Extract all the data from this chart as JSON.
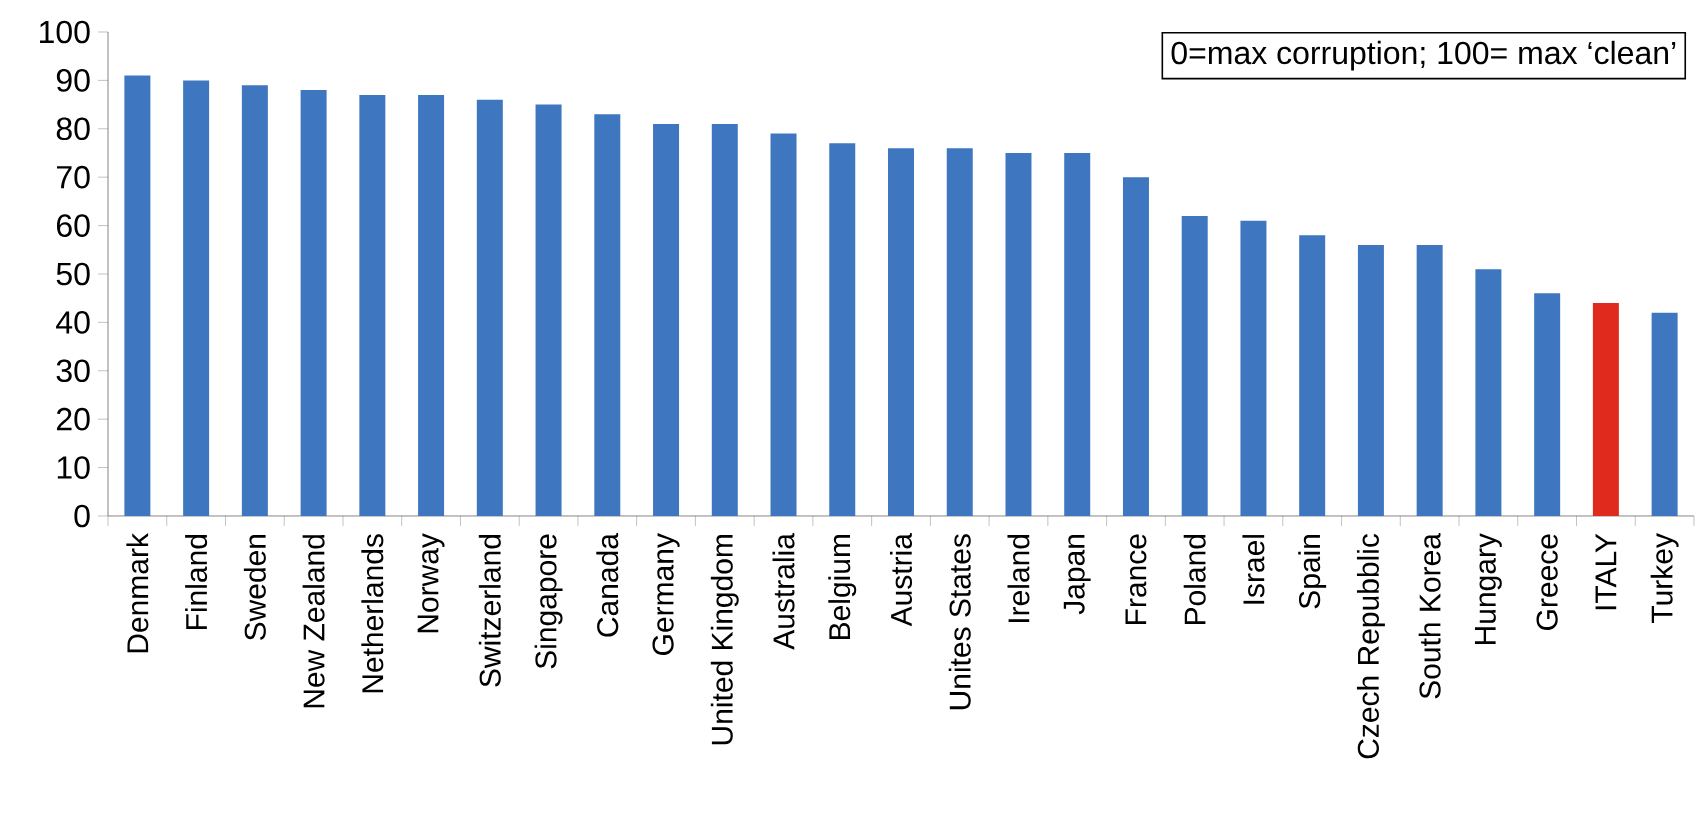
{
  "chart_data": {
    "type": "bar",
    "categories": [
      "Denmark",
      "Finland",
      "Sweden",
      "New Zealand",
      "Netherlands",
      "Norway",
      "Switzerland",
      "Singapore",
      "Canada",
      "Germany",
      "United Kingdom",
      "Australia",
      "Belgium",
      "Austria",
      "Unites States",
      "Ireland",
      "Japan",
      "France",
      "Poland",
      "Israel",
      "Spain",
      "Czech Repubblic",
      "South Korea",
      "Hungary",
      "Greece",
      "ITALY",
      "Turkey"
    ],
    "values": [
      91,
      90,
      89,
      88,
      87,
      87,
      86,
      85,
      83,
      81,
      81,
      79,
      77,
      76,
      76,
      75,
      75,
      70,
      62,
      61,
      58,
      56,
      56,
      51,
      46,
      44,
      42
    ],
    "colors": [
      "#3e77c0",
      "#3e77c0",
      "#3e77c0",
      "#3e77c0",
      "#3e77c0",
      "#3e77c0",
      "#3e77c0",
      "#3e77c0",
      "#3e77c0",
      "#3e77c0",
      "#3e77c0",
      "#3e77c0",
      "#3e77c0",
      "#3e77c0",
      "#3e77c0",
      "#3e77c0",
      "#3e77c0",
      "#3e77c0",
      "#3e77c0",
      "#3e77c0",
      "#3e77c0",
      "#3e77c0",
      "#3e77c0",
      "#3e77c0",
      "#3e77c0",
      "#e02a1e",
      "#3e77c0"
    ],
    "ylim": [
      0,
      100
    ],
    "yticks": [
      0,
      10,
      20,
      30,
      40,
      50,
      60,
      70,
      80,
      90,
      100
    ],
    "annotations": [
      "0=max corruption; 100= max ‘clean’"
    ],
    "grid": false
  }
}
